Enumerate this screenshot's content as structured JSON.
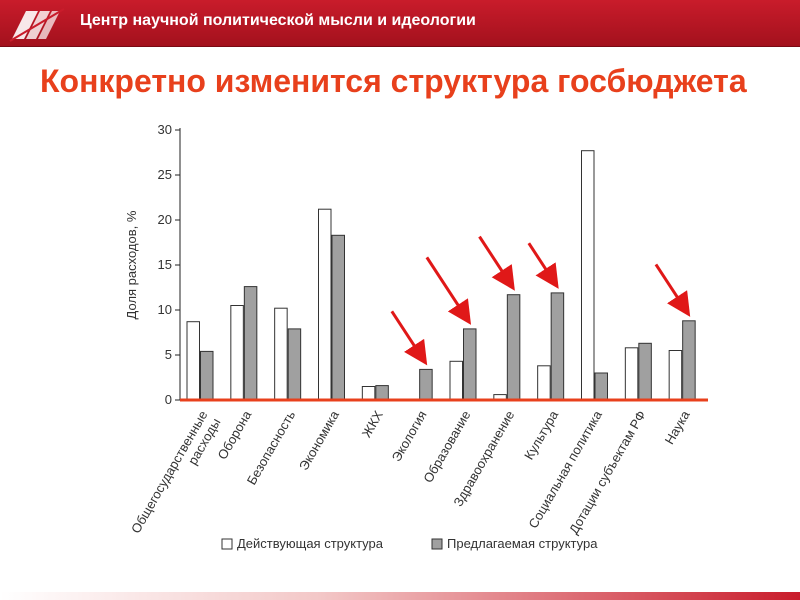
{
  "header": {
    "title": "Центр научной политической мысли и идеологии"
  },
  "slide": {
    "title": "Конкретно изменится структура госбюджета"
  },
  "colors": {
    "header_bar": "#b5141f",
    "title": "#e8401c",
    "axis": "#e8401c",
    "current_fill": "#ffffff",
    "proposed_fill": "#a0a0a0",
    "arrow": "#e01818"
  },
  "chart_data": {
    "type": "bar",
    "ylabel": "Доля расходов, %",
    "ylim": [
      0,
      30
    ],
    "yticks": [
      0,
      5,
      10,
      15,
      20,
      25,
      30
    ],
    "categories": [
      "Общегосударственные расходы",
      "Оборона",
      "Безопасность",
      "Экономика",
      "ЖКХ",
      "Экология",
      "Образование",
      "Здравоохранение",
      "Культура",
      "Социальная политика",
      "Дотации субъектам РФ",
      "Наука"
    ],
    "series": [
      {
        "name": "Действующая структура",
        "color": "#ffffff",
        "values": [
          8.7,
          10.5,
          10.2,
          21.2,
          1.5,
          0.1,
          4.3,
          0.6,
          3.8,
          27.7,
          5.8,
          5.5
        ]
      },
      {
        "name": "Предлагаемая структура",
        "color": "#a0a0a0",
        "values": [
          5.4,
          12.6,
          7.9,
          18.3,
          1.6,
          3.4,
          7.9,
          11.7,
          11.9,
          3.0,
          6.3,
          8.8
        ]
      }
    ],
    "highlighted_categories": [
      "Экология",
      "Образование",
      "Здравоохранение",
      "Культура",
      "Наука"
    ],
    "legend_position": "bottom",
    "grid": false
  }
}
